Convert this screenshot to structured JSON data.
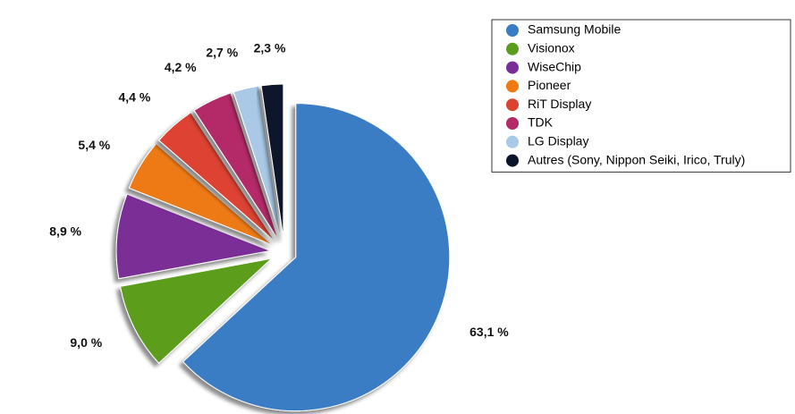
{
  "chart_data": {
    "type": "pie",
    "categories": [
      "Samsung Mobile",
      "Visionox",
      "WiseChip",
      "Pioneer",
      "RiT Display",
      "TDK",
      "LG Display",
      "Autres (Sony, Nippon Seiki, Irico, Truly)"
    ],
    "values": [
      63.1,
      9.0,
      8.9,
      5.4,
      4.4,
      4.2,
      2.7,
      2.3
    ],
    "value_labels": [
      "63,1 %",
      "9,0 %",
      "8,9 %",
      "5,4 %",
      "4,4 %",
      "4,2 %",
      "2,7 %",
      "2,3 %"
    ],
    "colors": [
      "#3b7dc4",
      "#5b9e1f",
      "#7b2d97",
      "#ee7a12",
      "#dd4231",
      "#b42a67",
      "#a9c9e6",
      "#0b1529"
    ],
    "legend": "right"
  }
}
